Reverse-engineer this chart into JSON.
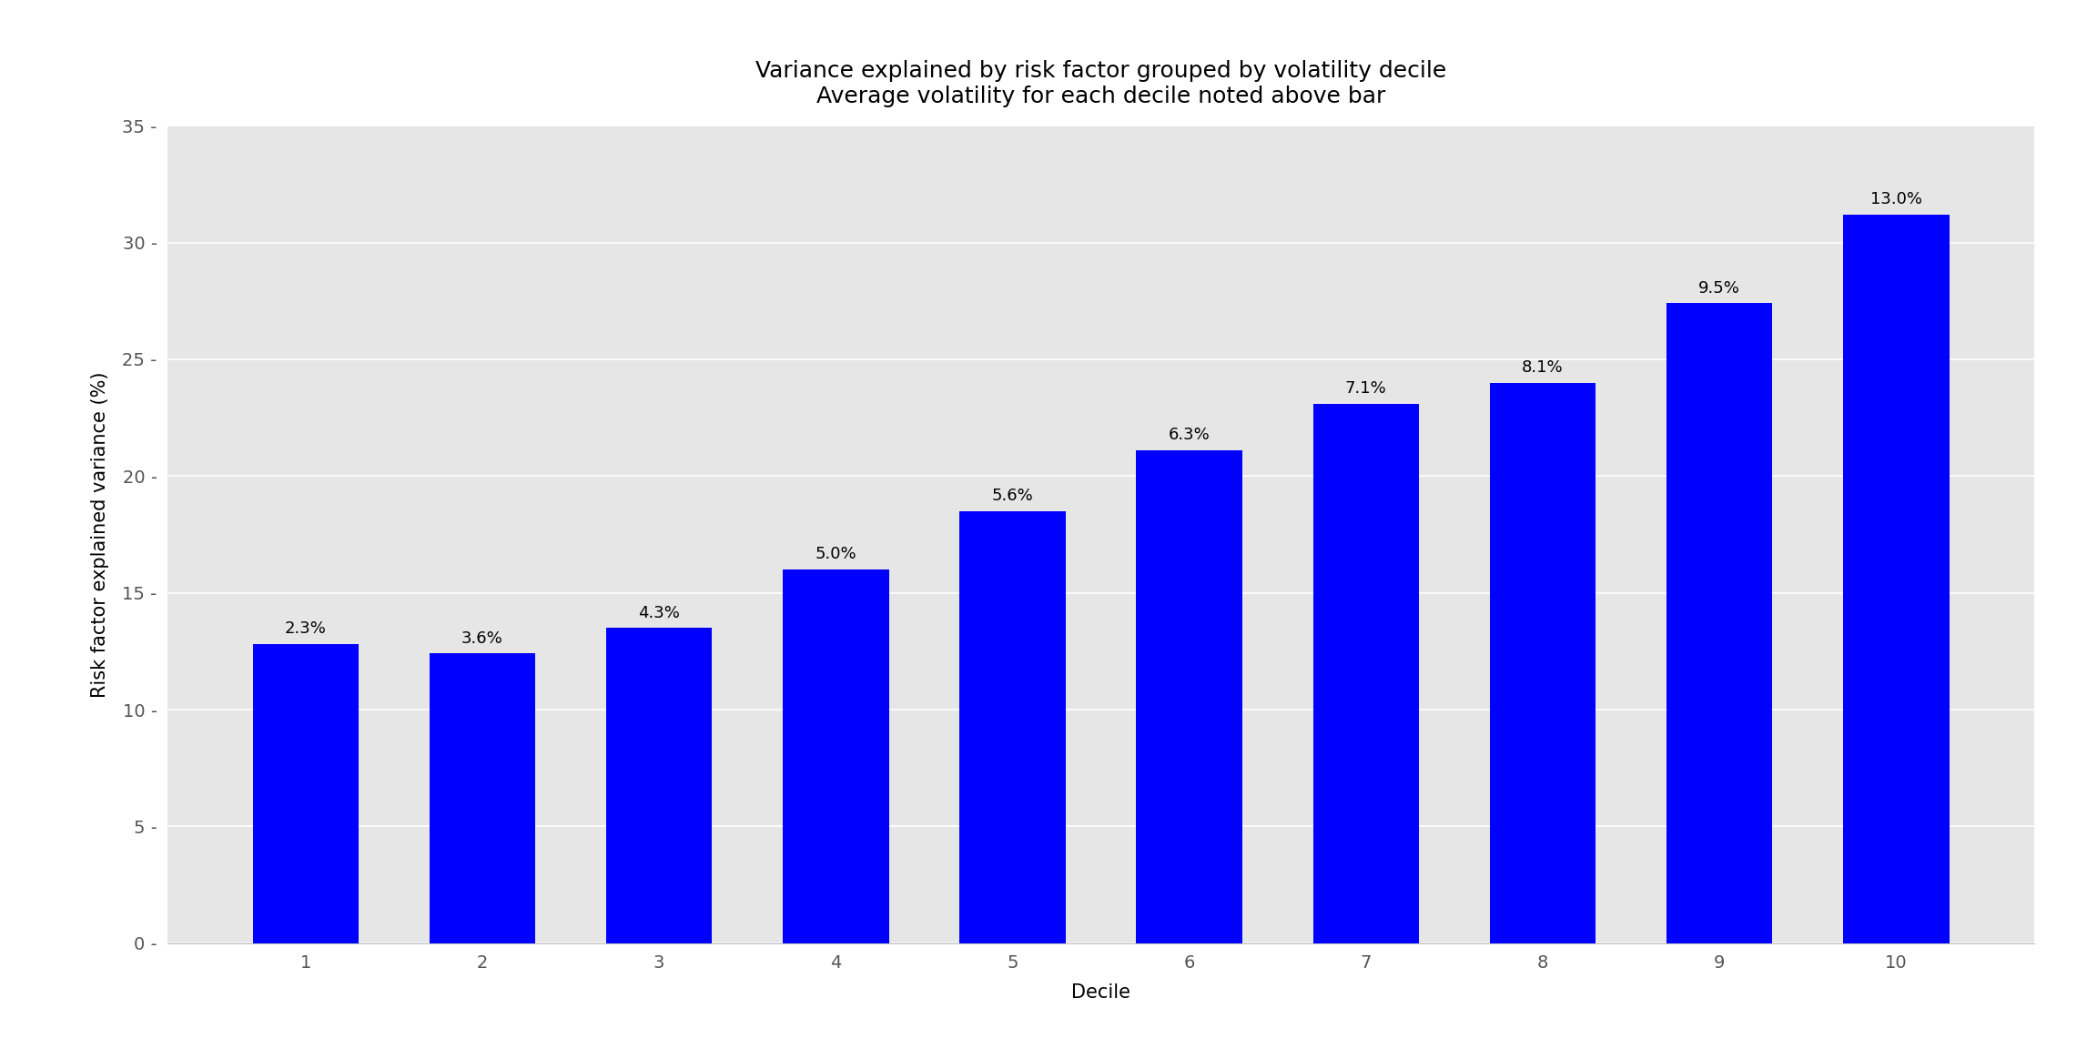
{
  "title_line1": "Variance explained by risk factor grouped by volatility decile",
  "title_line2": "Average volatility for each decile noted above bar",
  "xlabel": "Decile",
  "ylabel": "Risk factor explained variance (%)",
  "categories": [
    1,
    2,
    3,
    4,
    5,
    6,
    7,
    8,
    9,
    10
  ],
  "values": [
    12.8,
    12.4,
    13.5,
    16.0,
    18.5,
    21.1,
    23.1,
    24.0,
    27.4,
    31.2
  ],
  "bar_labels": [
    "2.3%",
    "3.6%",
    "4.3%",
    "5.0%",
    "5.6%",
    "6.3%",
    "7.1%",
    "8.1%",
    "9.5%",
    "13.0%"
  ],
  "bar_color": "#0000ff",
  "fig_background_color": "#ffffff",
  "plot_bg_color": "#e6e6e6",
  "ylim": [
    0,
    35
  ],
  "yticks": [
    0,
    5,
    10,
    15,
    20,
    25,
    30,
    35
  ],
  "title_fontsize": 18,
  "axis_label_fontsize": 15,
  "tick_fontsize": 14,
  "bar_label_fontsize": 13,
  "grid_color": "#ffffff",
  "tick_color": "#555555"
}
